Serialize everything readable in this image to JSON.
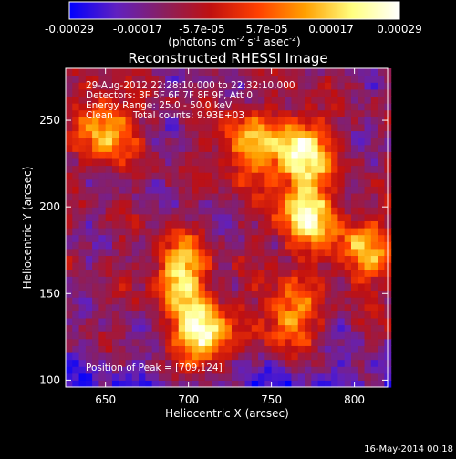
{
  "chart_data": {
    "type": "heatmap",
    "title": "Reconstructed RHESSI Image",
    "xlabel": "Heliocentric X (arcsec)",
    "ylabel": "Heliocentric Y (arcsec)",
    "xlim": [
      626,
      820
    ],
    "ylim": [
      96,
      280
    ],
    "x_ticks": [
      650,
      700,
      750,
      800
    ],
    "y_ticks": [
      100,
      150,
      200,
      250
    ],
    "colorbar": {
      "range": [
        -0.00029,
        0.00029
      ],
      "tick_values": [
        -0.00029,
        -0.00017,
        -5.7e-05,
        5.7e-05,
        0.00017,
        0.00029
      ],
      "tick_labels": [
        "-0.00029",
        "-0.00017",
        "-5.7e-05",
        "5.7e-05",
        "0.00017",
        "0.00029"
      ],
      "unit_label": "(photons cm",
      "unit_sup1": "-2",
      "unit_mid1": " s",
      "unit_sup2": "-1",
      "unit_mid2": " asec",
      "unit_sup3": "-2",
      "unit_end": ")",
      "colors": [
        "#0000ff",
        "#6020c0",
        "#8a1f5f",
        "#c01010",
        "#ff4000",
        "#ffa000",
        "#ffff80",
        "#ffffff"
      ]
    },
    "annotations": [
      "29-Aug-2012 22:28:10.000 to 22:32:10.000",
      "Detectors: 3F 5F 6F 7F 8F 9F, Att 0",
      "Energy Range: 25.0 - 50.0 keV",
      "Clean"
    ],
    "total_counts": "Total counts: 9.93E+03",
    "peak": "Position of Peak = [709,124]",
    "peak_position": [
      709,
      124
    ],
    "bright_sources": [
      {
        "x": 708,
        "y": 126,
        "value": 0.00029
      },
      {
        "x": 768,
        "y": 232,
        "value": 0.00027
      },
      {
        "x": 770,
        "y": 195,
        "value": 0.00024
      },
      {
        "x": 695,
        "y": 162,
        "value": 0.0002
      },
      {
        "x": 650,
        "y": 245,
        "value": 0.00017
      },
      {
        "x": 735,
        "y": 235,
        "value": 0.00015
      },
      {
        "x": 805,
        "y": 175,
        "value": 0.00015
      },
      {
        "x": 760,
        "y": 138,
        "value": 0.00014
      }
    ]
  },
  "footer": {
    "date": "16-May-2014 00:18"
  }
}
